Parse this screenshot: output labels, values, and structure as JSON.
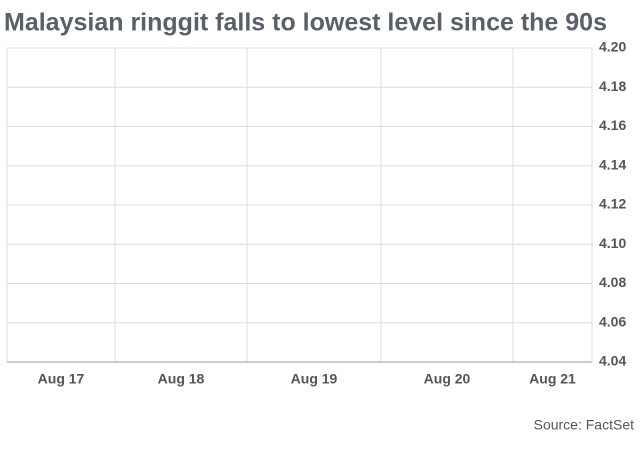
{
  "chart_data": {
    "type": "line",
    "title": "Malaysian ringgit falls to lowest level since the 90s",
    "categories": [
      "Aug 17",
      "Aug 18",
      "Aug 19",
      "Aug 20",
      "Aug 21"
    ],
    "series": [],
    "ylim": [
      4.04,
      4.2
    ],
    "yticks": [
      4.04,
      4.06,
      4.08,
      {
        "value": 4.1,
        "label": "4.10"
      },
      4.12,
      4.14,
      4.16,
      4.18,
      {
        "value": 4.2,
        "label": "4.20"
      }
    ],
    "grid": true,
    "source": "Source: FactSet"
  }
}
